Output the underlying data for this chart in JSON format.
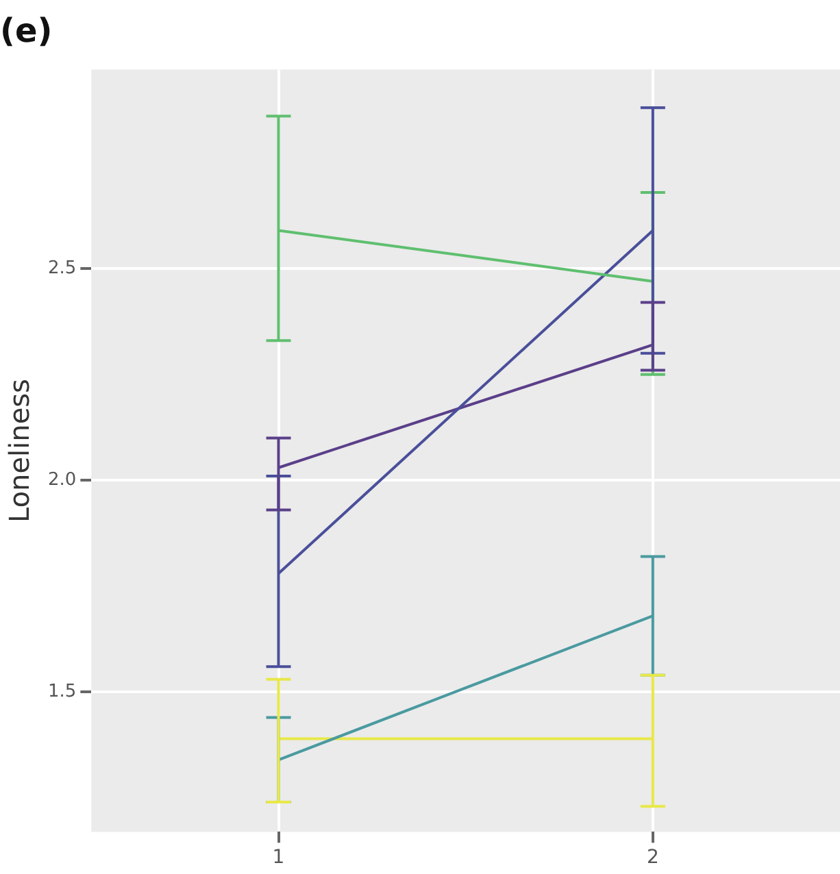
{
  "chart_data": {
    "type": "line",
    "title": "(e)",
    "ylabel": "Loneliness",
    "categories": [
      "1",
      "2"
    ],
    "series": [
      {
        "color": "#5fbf6f",
        "values": [
          2.59,
          2.47
        ],
        "errors": [
          [
            2.33,
            2.86
          ],
          [
            2.25,
            2.68
          ]
        ]
      },
      {
        "color": "#4a4f9a",
        "values": [
          1.78,
          2.59
        ],
        "errors": [
          [
            1.56,
            2.01
          ],
          [
            2.3,
            2.88
          ]
        ]
      },
      {
        "color": "#5a3f8a",
        "values": [
          2.03,
          2.32
        ],
        "errors": [
          [
            1.93,
            2.1
          ],
          [
            2.26,
            2.42
          ]
        ]
      },
      {
        "color": "#4a9aa0",
        "values": [
          1.34,
          1.68
        ],
        "errors": [
          [
            1.24,
            1.44
          ],
          [
            1.54,
            1.82
          ]
        ]
      },
      {
        "color": "#e8e84a",
        "values": [
          1.39,
          1.39
        ],
        "errors": [
          [
            1.24,
            1.53
          ],
          [
            1.23,
            1.54
          ]
        ]
      }
    ],
    "ylim": [
      1.17,
      2.97
    ],
    "yticks": [
      {
        "value": 1.5,
        "label": "1.5"
      },
      {
        "value": 2,
        "label": "2.0"
      },
      {
        "value": 2.5,
        "label": "2.5"
      }
    ],
    "grid": true,
    "legend": false,
    "marker": "none",
    "line_style": "solid"
  }
}
